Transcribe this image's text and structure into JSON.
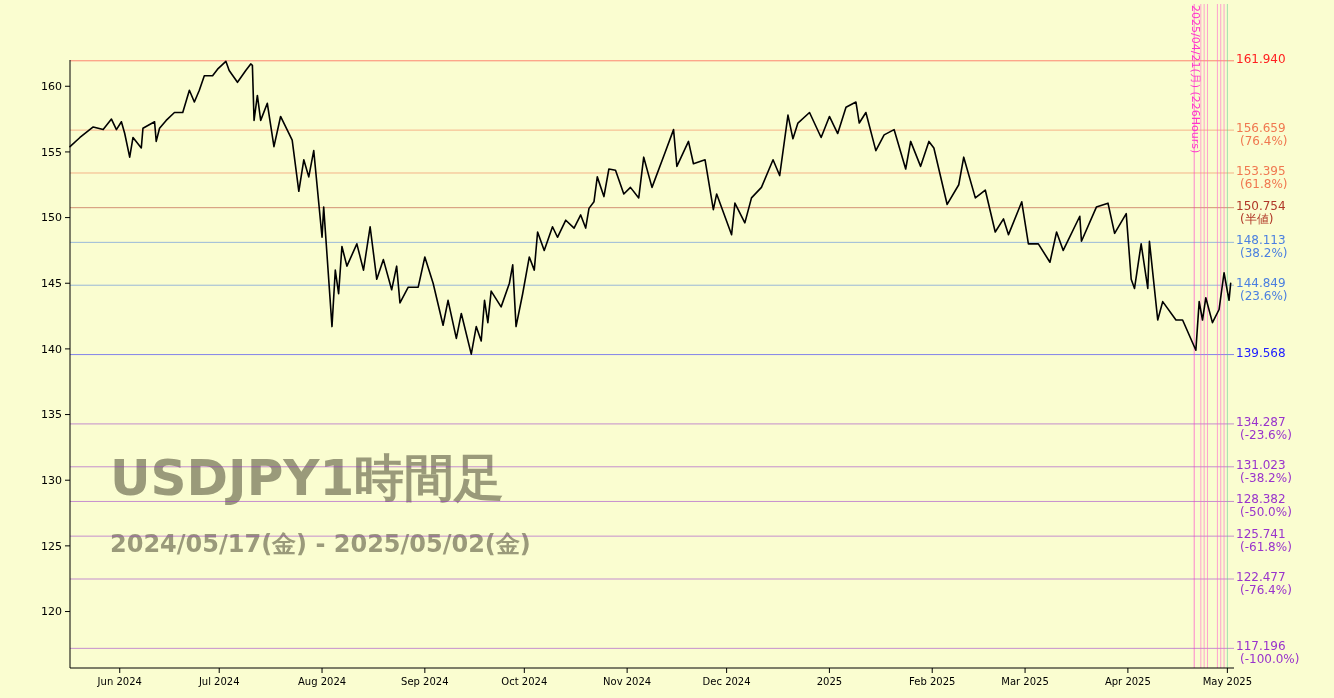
{
  "chart_data": {
    "type": "line",
    "title": "USDJPY1時間足",
    "subtitle": "2024/05/17(金) - 2025/05/02(金)",
    "x": [
      "2024-05-17",
      "2024-05-20",
      "2024-05-24",
      "2024-05-27",
      "2024-05-29T12:00",
      "2024-05-31",
      "2024-06-01T12:00",
      "2024-06-02T12:00",
      "2024-06-04",
      "2024-06-05",
      "2024-06-07T12:00",
      "2024-06-08",
      "2024-06-11T12:00",
      "2024-06-12",
      "2024-06-13",
      "2024-06-15",
      "2024-06-17T12:00",
      "2024-06-20",
      "2024-06-22",
      "2024-06-23T12:00",
      "2024-06-25",
      "2024-06-26T12:00",
      "2024-06-29",
      "2024-06-30T12:00",
      "2024-07-03",
      "2024-07-04",
      "2024-07-06T12:00",
      "2024-07-09",
      "2024-07-10T12:00",
      "2024-07-11",
      "2024-07-11T12:00",
      "2024-07-12T12:00",
      "2024-07-13T12:00",
      "2024-07-15T12:00",
      "2024-07-17T12:00",
      "2024-07-19T12:00",
      "2024-07-23",
      "2024-07-25",
      "2024-07-26T12:00",
      "2024-07-28",
      "2024-07-29T12:00",
      "2024-08-01",
      "2024-08-01T12:00",
      "2024-08-04",
      "2024-08-05",
      "2024-08-06",
      "2024-08-07",
      "2024-08-08T12:00",
      "2024-08-11T12:00",
      "2024-08-13T12:00",
      "2024-08-15T12:00",
      "2024-08-17T12:00",
      "2024-08-19T12:00",
      "2024-08-22",
      "2024-08-23T12:00",
      "2024-08-24T12:00",
      "2024-08-27",
      "2024-08-30",
      "2024-09-01",
      "2024-09-03T12:00",
      "2024-09-06T12:00",
      "2024-09-08",
      "2024-09-10T12:00",
      "2024-09-12",
      "2024-09-15",
      "2024-09-16T12:00",
      "2024-09-18",
      "2024-09-19",
      "2024-09-20",
      "2024-09-21",
      "2024-09-24",
      "2024-09-26T12:00",
      "2024-09-27T12:00",
      "2024-09-28T12:00",
      "2024-09-30T12:00",
      "2024-10-02T12:00",
      "2024-10-04",
      "2024-10-05",
      "2024-10-07",
      "2024-10-09T12:00",
      "2024-10-11",
      "2024-10-13T12:00",
      "2024-10-16",
      "2024-10-18",
      "2024-10-19T12:00",
      "2024-10-20T12:00",
      "2024-10-22",
      "2024-10-23",
      "2024-10-25",
      "2024-10-26T12:00",
      "2024-10-28T12:00",
      "2024-10-31",
      "2024-11-02",
      "2024-11-04T12:00",
      "2024-11-06",
      "2024-11-08T12:00",
      "2024-11-12T12:00",
      "2024-11-15",
      "2024-11-16",
      "2024-11-19T12:00",
      "2024-11-21",
      "2024-11-24T12:00",
      "2024-11-27",
      "2024-11-28",
      "2024-12-02T12:00",
      "2024-12-03T12:00",
      "2024-12-06T12:00",
      "2024-12-08T12:00",
      "2024-12-11T12:00",
      "2024-12-15",
      "2024-12-17",
      "2024-12-19T12:00",
      "2024-12-21",
      "2024-12-22T12:00",
      "2024-12-26",
      "2024-12-29T12:00",
      "2025-01-01",
      "2025-01-03T12:00",
      "2025-01-06",
      "2025-01-09",
      "2025-01-10",
      "2025-01-12",
      "2025-01-15",
      "2025-01-17T12:00",
      "2025-01-20T12:00",
      "2025-01-24",
      "2025-01-25T12:00",
      "2025-01-28T12:00",
      "2025-01-31",
      "2025-02-01T12:00",
      "2025-02-05T12:00",
      "2025-02-09",
      "2025-02-10T12:00",
      "2025-02-14",
      "2025-02-17",
      "2025-02-20",
      "2025-02-22T12:00",
      "2025-02-24",
      "2025-02-28",
      "2025-03-02",
      "2025-03-05",
      "2025-03-08T12:00",
      "2025-03-10T12:00",
      "2025-03-12T12:00",
      "2025-03-17T12:00",
      "2025-03-18",
      "2025-03-22T12:00",
      "2025-03-26",
      "2025-03-28",
      "2025-03-31T12:00",
      "2025-04-02",
      "2025-04-03",
      "2025-04-05",
      "2025-04-07",
      "2025-04-07T12:00",
      "2025-04-10",
      "2025-04-11T12:00",
      "2025-04-15T12:00",
      "2025-04-17T12:00",
      "2025-04-21T12:00",
      "2025-04-22T12:00",
      "2025-04-23T12:00",
      "2025-04-24T12:00",
      "2025-04-26T12:00",
      "2025-04-28T12:00",
      "2025-04-30",
      "2025-05-01T12:00",
      "2025-05-02"
    ],
    "series": [
      {
        "color": "#000000",
        "values": [
          155.4,
          156.1,
          156.9,
          156.7,
          157.5,
          156.7,
          157.3,
          156.4,
          154.6,
          156.1,
          155.3,
          156.8,
          157.3,
          155.8,
          156.8,
          157.4,
          158.0,
          158.0,
          159.7,
          158.8,
          159.7,
          160.8,
          160.8,
          161.3,
          161.9,
          161.2,
          160.3,
          161.2,
          161.7,
          161.6,
          157.4,
          159.3,
          157.4,
          158.7,
          155.4,
          157.7,
          155.9,
          152.0,
          154.4,
          153.1,
          155.1,
          148.5,
          150.8,
          141.7,
          146.0,
          144.2,
          147.8,
          146.3,
          148.0,
          146.0,
          149.3,
          145.3,
          146.8,
          144.5,
          146.3,
          143.5,
          144.7,
          144.7,
          147.0,
          145.0,
          141.8,
          143.7,
          140.8,
          142.7,
          139.6,
          141.7,
          140.6,
          143.7,
          142.0,
          144.4,
          143.2,
          145.0,
          146.4,
          141.7,
          144.2,
          147.0,
          146.0,
          148.9,
          147.5,
          149.3,
          148.5,
          149.8,
          149.2,
          150.2,
          149.2,
          150.7,
          151.2,
          153.1,
          151.6,
          153.7,
          153.6,
          151.8,
          152.3,
          151.5,
          154.6,
          152.3,
          155.0,
          156.7,
          153.9,
          155.8,
          154.1,
          154.4,
          150.6,
          151.8,
          148.7,
          151.1,
          149.6,
          151.5,
          152.3,
          154.4,
          153.2,
          157.8,
          156.0,
          157.2,
          158.0,
          156.1,
          157.7,
          156.4,
          158.4,
          158.8,
          157.2,
          158.0,
          155.1,
          156.3,
          156.7,
          153.7,
          155.8,
          153.9,
          155.8,
          155.3,
          151.0,
          152.5,
          154.6,
          151.5,
          152.1,
          148.9,
          149.9,
          148.7,
          151.2,
          148.0,
          148.0,
          146.6,
          148.9,
          147.5,
          150.1,
          148.2,
          150.8,
          151.1,
          148.8,
          150.3,
          145.3,
          144.6,
          148.0,
          144.6,
          148.2,
          142.2,
          143.6,
          142.2,
          142.2,
          139.9,
          143.6,
          142.2,
          143.9,
          142.0,
          143.0,
          145.8,
          143.7,
          145.0
        ]
      }
    ],
    "xlim": [
      "2024-05-17",
      "2025-05-03"
    ],
    "xticks": [
      {
        "value": "2024-06-01",
        "label": "Jun 2024"
      },
      {
        "value": "2024-07-01",
        "label": "Jul 2024"
      },
      {
        "value": "2024-08-01",
        "label": "Aug 2024"
      },
      {
        "value": "2024-09-01",
        "label": "Sep 2024"
      },
      {
        "value": "2024-10-01",
        "label": "Oct 2024"
      },
      {
        "value": "2024-11-01",
        "label": "Nov 2024"
      },
      {
        "value": "2024-12-01",
        "label": "Dec 2024"
      },
      {
        "value": "2025-01-01",
        "label": "2025"
      },
      {
        "value": "2025-02-01",
        "label": "Feb 2025"
      },
      {
        "value": "2025-03-01",
        "label": "Mar 2025"
      },
      {
        "value": "2025-04-01",
        "label": "Apr 2025"
      },
      {
        "value": "2025-05-01",
        "label": "May 2025"
      }
    ],
    "ylim": [
      115.7,
      162
    ],
    "yticks": [
      120,
      125,
      130,
      135,
      140,
      145,
      150,
      155,
      160
    ],
    "grid": false,
    "marker": "none",
    "line_style": "solid",
    "ref_lines": [
      {
        "axis": "y",
        "value": 161.94,
        "label": "161.940",
        "color": "#ff2020"
      },
      {
        "axis": "y",
        "value": 156.659,
        "label": "156.659 (76.4%)",
        "color": "#f07850"
      },
      {
        "axis": "y",
        "value": 153.395,
        "label": "153.395 (61.8%)",
        "color": "#f07850"
      },
      {
        "axis": "y",
        "value": 150.754,
        "label": "150.754 (半値)",
        "color": "#b03828"
      },
      {
        "axis": "y",
        "value": 148.113,
        "label": "148.113 (38.2%)",
        "color": "#4a7fe0"
      },
      {
        "axis": "y",
        "value": 144.849,
        "label": "144.849 (23.6%)",
        "color": "#4a7fe0"
      },
      {
        "axis": "y",
        "value": 139.568,
        "label": "139.568",
        "color": "#2020ff"
      },
      {
        "axis": "y",
        "value": 134.287,
        "label": "134.287 (-23.6%)",
        "color": "#9933cc"
      },
      {
        "axis": "y",
        "value": 131.023,
        "label": "131.023 (-38.2%)",
        "color": "#9933cc"
      },
      {
        "axis": "y",
        "value": 128.382,
        "label": "128.382 (-50.0%)",
        "color": "#9933cc"
      },
      {
        "axis": "y",
        "value": 125.741,
        "label": "125.741 (-61.8%)",
        "color": "#9933cc"
      },
      {
        "axis": "y",
        "value": 122.477,
        "label": "122.477 (-76.4%)",
        "color": "#9933cc"
      },
      {
        "axis": "y",
        "value": 117.196,
        "label": "117.196 (-100.0%)",
        "color": "#9933cc"
      },
      {
        "axis": "x",
        "value": "2025-04-21",
        "label": "2025/04/21(月) (226Hours)",
        "color": "#ff33cc"
      },
      {
        "axis": "x",
        "value": "2025-04-23",
        "label": null,
        "color": "#ff66cc"
      },
      {
        "axis": "x",
        "value": "2025-04-24",
        "label": null,
        "color": "#ff66cc"
      },
      {
        "axis": "x",
        "value": "2025-04-25",
        "label": null,
        "color": "#ff66cc"
      },
      {
        "axis": "x",
        "value": "2025-04-28",
        "label": null,
        "color": "#ff66cc"
      },
      {
        "axis": "x",
        "value": "2025-04-29",
        "label": null,
        "color": "#ff66cc"
      },
      {
        "axis": "x",
        "value": "2025-04-30",
        "label": null,
        "color": "#ff66cc"
      },
      {
        "axis": "x",
        "value": "2025-05-01",
        "label": null,
        "color": "#66cc99"
      }
    ]
  }
}
